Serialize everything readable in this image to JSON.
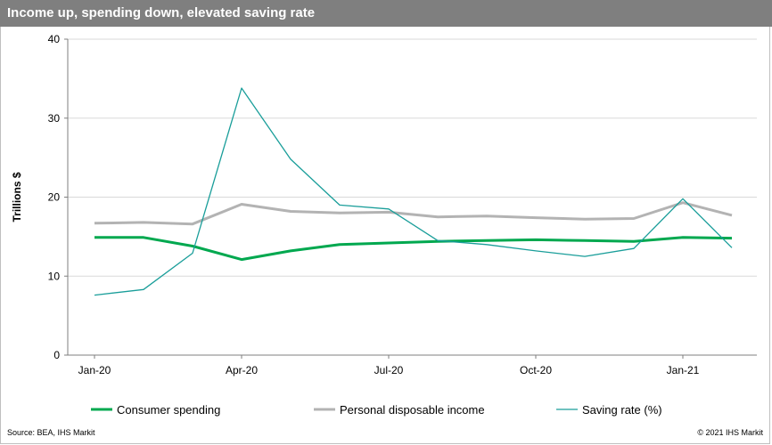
{
  "header": {
    "title": "Income up, spending down, elevated saving rate"
  },
  "footer": {
    "source": "Source: BEA, IHS Markit",
    "copyright": "© 2021 IHS Markit"
  },
  "chart_data": {
    "type": "line",
    "title": "Income up, spending down, elevated saving rate",
    "xlabel": "",
    "ylabel": "Trillions $",
    "ylim": [
      0,
      40
    ],
    "yticks": [
      0,
      10,
      20,
      30,
      40
    ],
    "grid": "horizontal",
    "legend_position": "bottom",
    "x": [
      "Jan-20",
      "Feb-20",
      "Mar-20",
      "Apr-20",
      "May-20",
      "Jun-20",
      "Jul-20",
      "Aug-20",
      "Sep-20",
      "Oct-20",
      "Nov-20",
      "Dec-20",
      "Jan-21",
      "Feb-21"
    ],
    "xtick_labels": [
      "Jan-20",
      "Apr-20",
      "Jul-20",
      "Oct-20",
      "Jan-21"
    ],
    "series": [
      {
        "name": "Consumer spending",
        "color": "#00a84f",
        "width": 3,
        "values": [
          14.9,
          14.9,
          13.8,
          12.1,
          13.2,
          14.0,
          14.2,
          14.4,
          14.5,
          14.6,
          14.5,
          14.4,
          14.9,
          14.8
        ]
      },
      {
        "name": "Personal disposable income",
        "color": "#b3b3b3",
        "width": 3,
        "values": [
          16.7,
          16.8,
          16.6,
          19.1,
          18.2,
          18.0,
          18.1,
          17.5,
          17.6,
          17.4,
          17.2,
          17.3,
          19.3,
          17.7
        ]
      },
      {
        "name": "Saving rate (%)",
        "color": "#1a9e9a",
        "width": 1.3,
        "values": [
          7.6,
          8.3,
          12.9,
          33.8,
          24.8,
          19.0,
          18.5,
          14.5,
          14.0,
          13.2,
          12.5,
          13.5,
          19.8,
          13.6
        ]
      }
    ]
  }
}
